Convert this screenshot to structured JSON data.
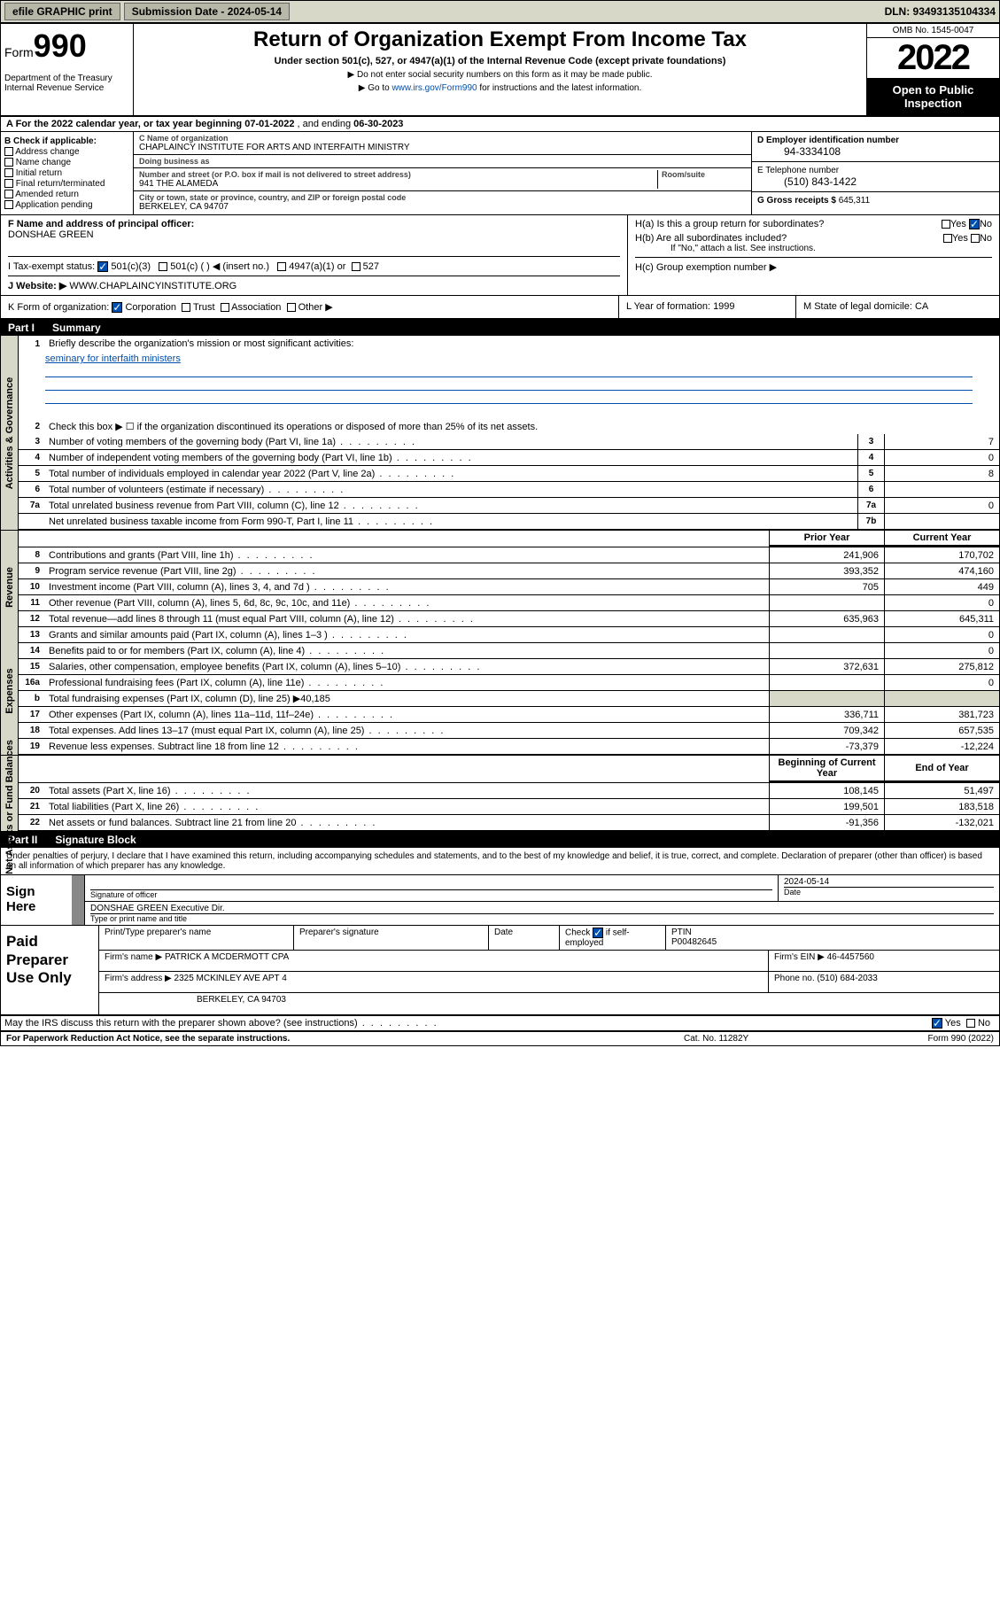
{
  "topbar": {
    "efile": "efile GRAPHIC print",
    "submission": "Submission Date - 2024-05-14",
    "dln": "DLN: 93493135104334"
  },
  "header": {
    "form_prefix": "Form",
    "form_num": "990",
    "dept": "Department of the Treasury\nInternal Revenue Service",
    "title": "Return of Organization Exempt From Income Tax",
    "sub": "Under section 501(c), 527, or 4947(a)(1) of the Internal Revenue Code (except private foundations)",
    "note1": "▶ Do not enter social security numbers on this form as it may be made public.",
    "note2_pre": "▶ Go to ",
    "note2_link": "www.irs.gov/Form990",
    "note2_post": " for instructions and the latest information.",
    "omb": "OMB No. 1545-0047",
    "year": "2022",
    "inspect": "Open to Public Inspection"
  },
  "rowA": {
    "text_pre": "A For the 2022 calendar year, or tax year beginning ",
    "begin": "07-01-2022",
    "mid": " , and ending ",
    "end": "06-30-2023"
  },
  "colB": {
    "hdr": "B Check if applicable:",
    "items": [
      "Address change",
      "Name change",
      "Initial return",
      "Final return/terminated",
      "Amended return",
      "Application pending"
    ]
  },
  "colC": {
    "name_lbl": "C Name of organization",
    "name": "CHAPLAINCY INSTITUTE FOR ARTS AND INTERFAITH MINISTRY",
    "dba_lbl": "Doing business as",
    "dba": "",
    "addr_lbl": "Number and street (or P.O. box if mail is not delivered to street address)",
    "room_lbl": "Room/suite",
    "addr": "941 THE ALAMEDA",
    "city_lbl": "City or town, state or province, country, and ZIP or foreign postal code",
    "city": "BERKELEY, CA  94707"
  },
  "colDE": {
    "ein_lbl": "D Employer identification number",
    "ein": "94-3334108",
    "phone_lbl": "E Telephone number",
    "phone": "(510) 843-1422",
    "gross_lbl": "G Gross receipts $",
    "gross": "645,311"
  },
  "rowFH": {
    "f_lbl": "F Name and address of principal officer:",
    "f_val": "DONSHAE GREEN",
    "ha": "H(a)  Is this a group return for subordinates?",
    "hb": "H(b)  Are all subordinates included?",
    "hb_note": "If \"No,\" attach a list. See instructions.",
    "hc": "H(c)  Group exemption number ▶",
    "yes": "Yes",
    "no": "No"
  },
  "rowI": {
    "lbl": "I   Tax-exempt status:",
    "o1": "501(c)(3)",
    "o2": "501(c) (  ) ◀ (insert no.)",
    "o3": "4947(a)(1) or",
    "o4": "527"
  },
  "rowJ": {
    "lbl": "J   Website: ▶",
    "val": " WWW.CHAPLAINCYINSTITUTE.ORG"
  },
  "rowK": {
    "lbl": "K Form of organization:",
    "o1": "Corporation",
    "o2": "Trust",
    "o3": "Association",
    "o4": "Other ▶",
    "l_lbl": "L Year of formation:",
    "l_val": "1999",
    "m_lbl": "M State of legal domicile:",
    "m_val": "CA"
  },
  "part1": {
    "num": "Part I",
    "title": "Summary"
  },
  "summary": {
    "gov_label": "Activities & Governance",
    "rev_label": "Revenue",
    "exp_label": "Expenses",
    "net_label": "Net Assets or Fund Balances",
    "q1": "Briefly describe the organization's mission or most significant activities:",
    "q1_val": "seminary for interfaith ministers",
    "q2": "Check this box ▶ ☐  if the organization discontinued its operations or disposed of more than 25% of its net assets.",
    "lines_gov": [
      {
        "n": "3",
        "t": "Number of voting members of the governing body (Part VI, line 1a)",
        "b": "3",
        "v": "7"
      },
      {
        "n": "4",
        "t": "Number of independent voting members of the governing body (Part VI, line 1b)",
        "b": "4",
        "v": "0"
      },
      {
        "n": "5",
        "t": "Total number of individuals employed in calendar year 2022 (Part V, line 2a)",
        "b": "5",
        "v": "8"
      },
      {
        "n": "6",
        "t": "Total number of volunteers (estimate if necessary)",
        "b": "6",
        "v": ""
      },
      {
        "n": "7a",
        "t": "Total unrelated business revenue from Part VIII, column (C), line 12",
        "b": "7a",
        "v": "0"
      },
      {
        "n": "",
        "t": "Net unrelated business taxable income from Form 990-T, Part I, line 11",
        "b": "7b",
        "v": ""
      }
    ],
    "col_prior": "Prior Year",
    "col_curr": "Current Year",
    "col_beg": "Beginning of Current Year",
    "col_end": "End of Year",
    "lines_rev": [
      {
        "n": "8",
        "t": "Contributions and grants (Part VIII, line 1h)",
        "p": "241,906",
        "c": "170,702"
      },
      {
        "n": "9",
        "t": "Program service revenue (Part VIII, line 2g)",
        "p": "393,352",
        "c": "474,160"
      },
      {
        "n": "10",
        "t": "Investment income (Part VIII, column (A), lines 3, 4, and 7d )",
        "p": "705",
        "c": "449"
      },
      {
        "n": "11",
        "t": "Other revenue (Part VIII, column (A), lines 5, 6d, 8c, 9c, 10c, and 11e)",
        "p": "",
        "c": "0"
      },
      {
        "n": "12",
        "t": "Total revenue—add lines 8 through 11 (must equal Part VIII, column (A), line 12)",
        "p": "635,963",
        "c": "645,311"
      }
    ],
    "lines_exp": [
      {
        "n": "13",
        "t": "Grants and similar amounts paid (Part IX, column (A), lines 1–3 )",
        "p": "",
        "c": "0"
      },
      {
        "n": "14",
        "t": "Benefits paid to or for members (Part IX, column (A), line 4)",
        "p": "",
        "c": "0"
      },
      {
        "n": "15",
        "t": "Salaries, other compensation, employee benefits (Part IX, column (A), lines 5–10)",
        "p": "372,631",
        "c": "275,812"
      },
      {
        "n": "16a",
        "t": "Professional fundraising fees (Part IX, column (A), line 11e)",
        "p": "",
        "c": "0"
      }
    ],
    "line16b": {
      "n": "b",
      "t": "Total fundraising expenses (Part IX, column (D), line 25) ▶",
      "v": "40,185"
    },
    "lines_exp2": [
      {
        "n": "17",
        "t": "Other expenses (Part IX, column (A), lines 11a–11d, 11f–24e)",
        "p": "336,711",
        "c": "381,723"
      },
      {
        "n": "18",
        "t": "Total expenses. Add lines 13–17 (must equal Part IX, column (A), line 25)",
        "p": "709,342",
        "c": "657,535"
      },
      {
        "n": "19",
        "t": "Revenue less expenses. Subtract line 18 from line 12",
        "p": "-73,379",
        "c": "-12,224"
      }
    ],
    "lines_net": [
      {
        "n": "20",
        "t": "Total assets (Part X, line 16)",
        "p": "108,145",
        "c": "51,497"
      },
      {
        "n": "21",
        "t": "Total liabilities (Part X, line 26)",
        "p": "199,501",
        "c": "183,518"
      },
      {
        "n": "22",
        "t": "Net assets or fund balances. Subtract line 21 from line 20",
        "p": "-91,356",
        "c": "-132,021"
      }
    ]
  },
  "part2": {
    "num": "Part II",
    "title": "Signature Block"
  },
  "sig": {
    "intro": "Under penalties of perjury, I declare that I have examined this return, including accompanying schedules and statements, and to the best of my knowledge and belief, it is true, correct, and complete. Declaration of preparer (other than officer) is based on all information of which preparer has any knowledge.",
    "sign_here": "Sign Here",
    "sig_officer": "Signature of officer",
    "date_lbl": "Date",
    "date_val": "2024-05-14",
    "name": "DONSHAE GREEN  Executive Dir.",
    "name_lbl": "Type or print name and title"
  },
  "paid": {
    "label": "Paid Preparer Use Only",
    "h1": "Print/Type preparer's name",
    "h2": "Preparer's signature",
    "h3": "Date",
    "h4_pre": "Check",
    "h4_post": "if self-employed",
    "h5": "PTIN",
    "ptin": "P00482645",
    "firm_lbl": "Firm's name    ▶",
    "firm": "PATRICK A MCDERMOTT CPA",
    "ein_lbl": "Firm's EIN ▶",
    "ein": "46-4457560",
    "addr_lbl": "Firm's address ▶",
    "addr1": "2325 MCKINLEY AVE APT 4",
    "addr2": "BERKELEY, CA  94703",
    "phone_lbl": "Phone no.",
    "phone": "(510) 684-2033"
  },
  "discuss": {
    "txt": "May the IRS discuss this return with the preparer shown above? (see instructions)",
    "yes": "Yes",
    "no": "No"
  },
  "footer": {
    "l": "For Paperwork Reduction Act Notice, see the separate instructions.",
    "m": "Cat. No. 11282Y",
    "r": "Form 990 (2022)"
  }
}
